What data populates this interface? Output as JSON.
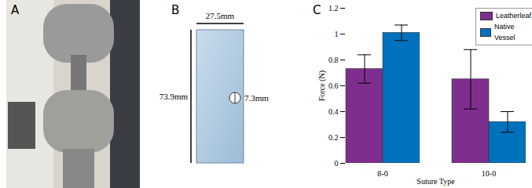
{
  "panels": {
    "A": {
      "label": "A"
    },
    "B": {
      "label": "B",
      "dimensions": {
        "width": "27.5mm",
        "height": "73.9mm",
        "hole": "7.3mm"
      }
    },
    "C": {
      "label": "C"
    }
  },
  "chart_data": {
    "type": "bar",
    "xlabel": "Suture Type",
    "ylabel": "Force (N)",
    "categories": [
      "8-0",
      "10-0"
    ],
    "series": [
      {
        "name": "Leatherleaf",
        "color": "#7e2f8e",
        "values": [
          0.73,
          0.65
        ],
        "errors": [
          0.11,
          0.23
        ]
      },
      {
        "name": "Native Vessel",
        "color": "#0072bd",
        "values": [
          1.01,
          0.32
        ],
        "errors": [
          0.06,
          0.08
        ]
      }
    ],
    "ylim": [
      0,
      1.2
    ],
    "yticks": [
      0,
      0.2,
      0.4,
      0.6,
      0.8,
      1,
      1.2
    ],
    "grid": false,
    "legend": "upper right"
  }
}
